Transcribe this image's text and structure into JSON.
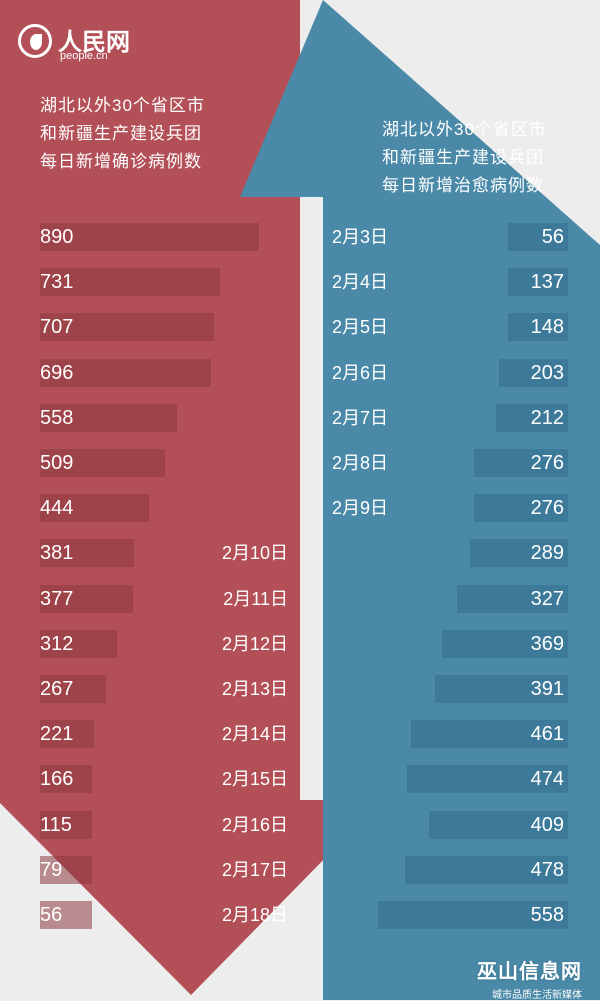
{
  "logo": {
    "name": "人民网",
    "url": "people.cn"
  },
  "left_title": [
    "湖北以外30个省区市",
    "和新疆生产建设兵团",
    "每日新增确诊病例数"
  ],
  "right_title": [
    "湖北以外30个省区市",
    "和新疆生产建设兵团",
    "每日新增治愈病例数"
  ],
  "brand": {
    "name": "巫山信息网",
    "tagline": "城市品质生活新媒体"
  },
  "colors": {
    "left_panel": "#b34f56",
    "right_panel": "#4a8aa8",
    "background": "#ededee"
  },
  "chart_data": {
    "type": "bar",
    "categories": [
      "2月3日",
      "2月4日",
      "2月5日",
      "2月6日",
      "2月7日",
      "2月8日",
      "2月9日",
      "2月10日",
      "2月11日",
      "2月12日",
      "2月13日",
      "2月14日",
      "2月15日",
      "2月16日",
      "2月17日",
      "2月18日"
    ],
    "series": [
      {
        "name": "湖北以外30个省区市和新疆生产建设兵团每日新增确诊病例数",
        "values": [
          890,
          731,
          707,
          696,
          558,
          509,
          444,
          381,
          377,
          312,
          267,
          221,
          166,
          115,
          79,
          56
        ]
      },
      {
        "name": "湖北以外30个省区市和新疆生产建设兵团每日新增治愈病例数",
        "values": [
          56,
          137,
          148,
          203,
          212,
          276,
          276,
          289,
          327,
          369,
          391,
          461,
          474,
          409,
          478,
          558
        ]
      }
    ],
    "title": "",
    "xlabel": "",
    "ylabel": ""
  }
}
